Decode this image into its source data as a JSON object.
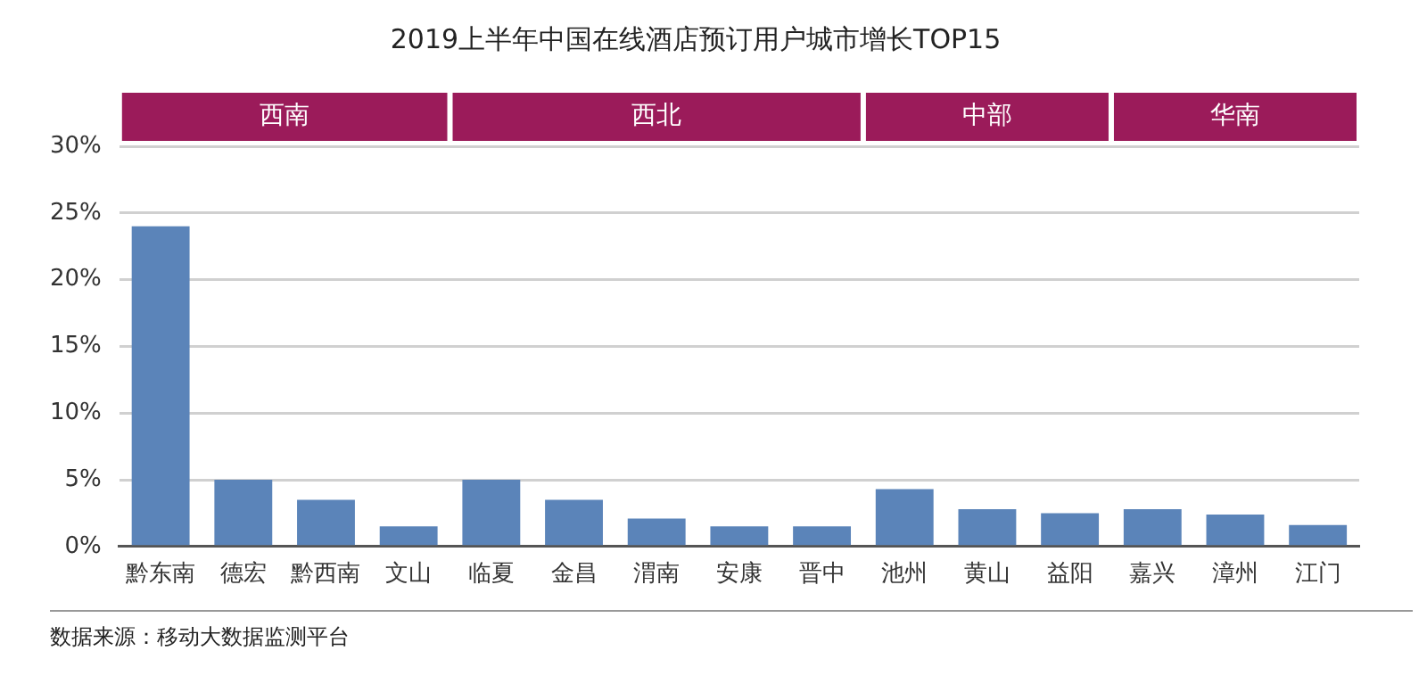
{
  "chart_data": {
    "type": "bar",
    "title": "2019上半年中国在线酒店预订用户城市增长TOP15",
    "categories": [
      "黔东南",
      "德宏",
      "黔西南",
      "文山",
      "临夏",
      "金昌",
      "渭南",
      "安康",
      "晋中",
      "池州",
      "黄山",
      "益阳",
      "嘉兴",
      "漳州",
      "江门"
    ],
    "values": [
      24,
      5,
      3.5,
      1.5,
      5,
      3.5,
      2.1,
      1.5,
      1.5,
      4.3,
      2.8,
      2.5,
      2.8,
      2.4,
      1.6
    ],
    "color": "#5b84b9",
    "ylim": [
      0,
      30
    ],
    "yticks": [
      {
        "value": 0,
        "label": "0%"
      },
      {
        "value": 5,
        "label": "5%"
      },
      {
        "value": 10,
        "label": "10%"
      },
      {
        "value": 15,
        "label": "15%"
      },
      {
        "value": 20,
        "label": "20%"
      },
      {
        "value": 25,
        "label": "25%"
      },
      {
        "value": 30,
        "label": "30%"
      }
    ],
    "grid": "y",
    "annotations": [
      "西南",
      "西北",
      "中部",
      "华南",
      "数据来源：移动大数据监测平台"
    ]
  }
}
